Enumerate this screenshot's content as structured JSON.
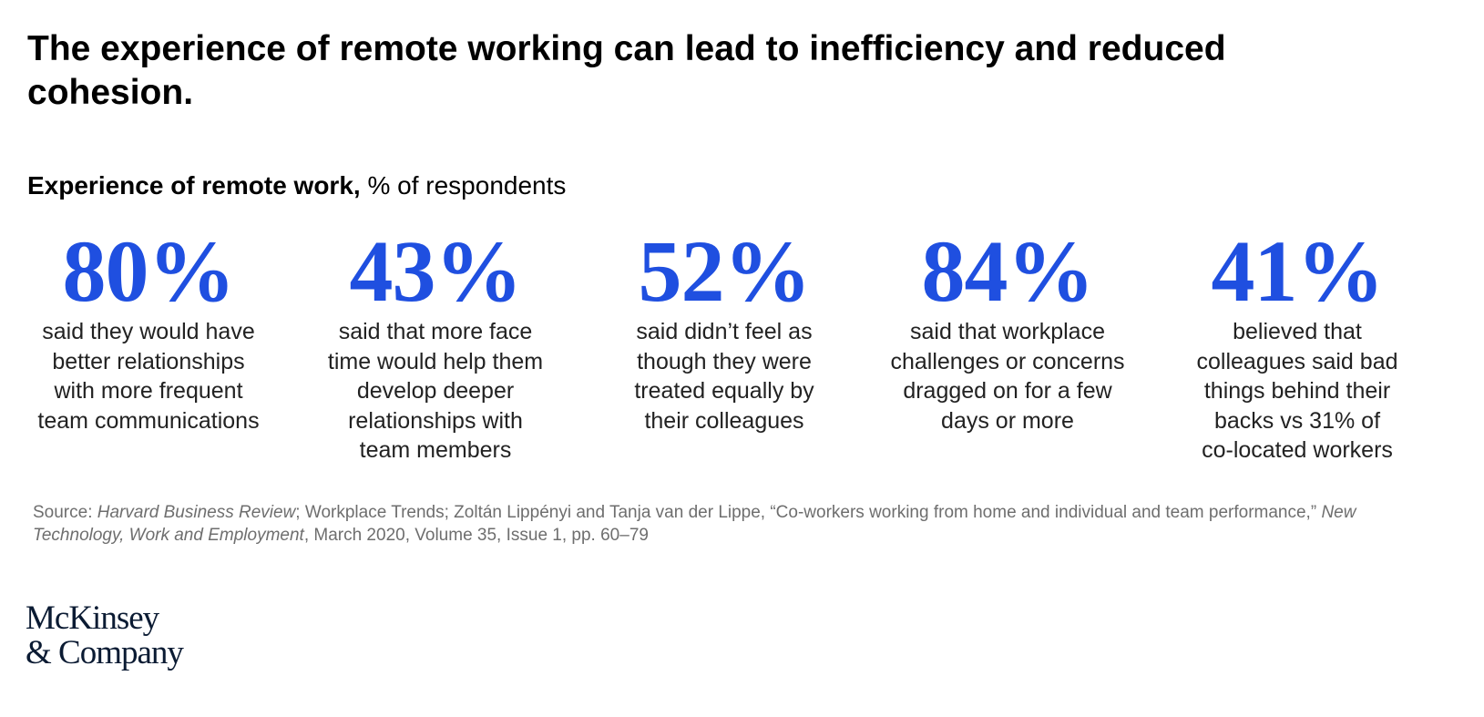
{
  "title": "The experience of remote working can lead to inefficiency and reduced cohesion.",
  "subtitle": {
    "bold": "Experience of remote work,",
    "rest": " % of respondents"
  },
  "chart_data": {
    "type": "table",
    "unit": "% of respondents",
    "values": [
      80,
      43,
      52,
      84,
      41
    ],
    "labels": [
      "80%",
      "43%",
      "52%",
      "84%",
      "41%"
    ],
    "accent_color": "#1f4fe0"
  },
  "stats": [
    {
      "value": "80%",
      "lines": [
        "said they would have",
        "better relationships",
        "with more frequent",
        "team communications"
      ]
    },
    {
      "value": "43%",
      "lines": [
        "said that more face",
        "time would help them",
        "develop deeper",
        "relationships with",
        "team members"
      ]
    },
    {
      "value": "52%",
      "lines": [
        "said didn’t feel as",
        "though they were",
        "treated equally by",
        "their colleagues"
      ]
    },
    {
      "value": "84%",
      "lines": [
        "said that workplace",
        "challenges or concerns",
        "dragged on for a few",
        "days or more"
      ]
    },
    {
      "value": "41%",
      "lines": [
        "believed that",
        "colleagues said bad",
        "things behind their",
        "backs vs 31% of",
        "co-located workers"
      ]
    }
  ],
  "source": {
    "p1": "Source: ",
    "i1": "Harvard Business Review",
    "p2": "; Workplace Trends; Zoltán Lippényi and Tanja van der Lippe, “Co-workers working from home and individual and team performance,” ",
    "i2": "New Technology, Work and Employment",
    "p3": ", March 2020, Volume 35, Issue 1, pp. 60–79"
  },
  "logo": {
    "line1": "McKinsey",
    "line2": "& Company"
  }
}
